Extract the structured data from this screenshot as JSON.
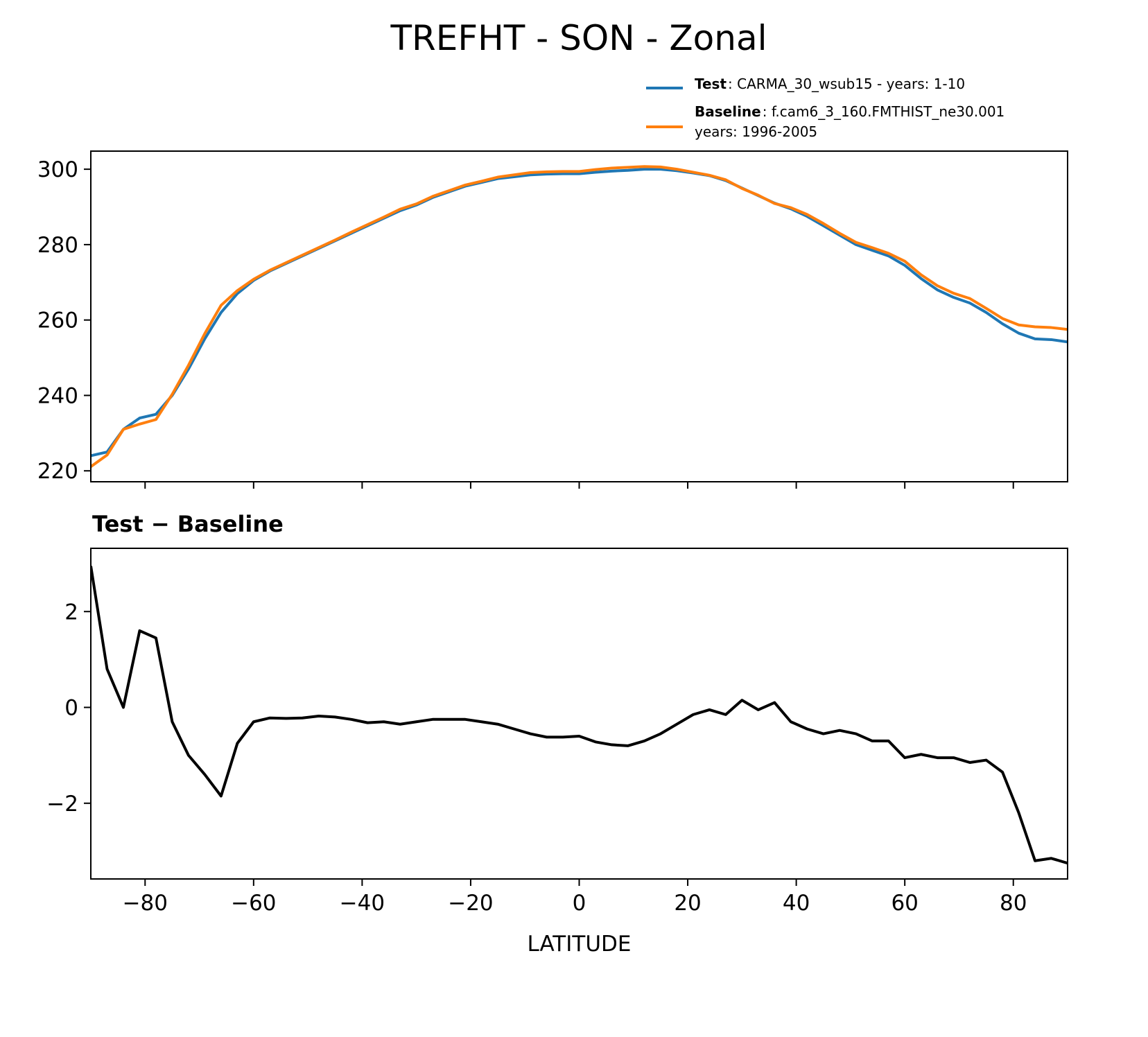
{
  "chart_data": [
    {
      "type": "line",
      "title": "TREFHT - SON - Zonal",
      "x": [
        -90,
        -87,
        -84,
        -81,
        -78,
        -75,
        -72,
        -69,
        -66,
        -63,
        -60,
        -57,
        -54,
        -51,
        -48,
        -45,
        -42,
        -39,
        -36,
        -33,
        -30,
        -27,
        -24,
        -21,
        -18,
        -15,
        -12,
        -9,
        -6,
        -3,
        0,
        3,
        6,
        9,
        12,
        15,
        18,
        21,
        24,
        27,
        30,
        33,
        36,
        39,
        42,
        45,
        48,
        51,
        54,
        57,
        60,
        63,
        66,
        69,
        72,
        75,
        78,
        81,
        84,
        87,
        90
      ],
      "series": [
        {
          "name": "Test",
          "description": [
            ": CARMA_30_wsub15 - years: 1-10"
          ],
          "color": "#1f77b4",
          "values": [
            224,
            225,
            231,
            234,
            235,
            240,
            247,
            255,
            262,
            267,
            270.5,
            273,
            275,
            277,
            279,
            281,
            283,
            285,
            287,
            289,
            290.5,
            292.5,
            294,
            295.5,
            296.5,
            297.5,
            298,
            298.5,
            298.7,
            298.8,
            298.8,
            299.2,
            299.5,
            299.7,
            300,
            300,
            299.6,
            299,
            298.3,
            297,
            295,
            293,
            291,
            289.5,
            287.5,
            285,
            282.5,
            280,
            278.5,
            277,
            274.5,
            271,
            268,
            266,
            264.5,
            262,
            259,
            256.5,
            255,
            254.8,
            254.2
          ]
        },
        {
          "name": "Baseline",
          "description": [
            ": f.cam6_3_160.FMTHIST_ne30.001",
            "years: 1996-2005"
          ],
          "color": "#ff7f0e",
          "values": [
            221.1,
            224.2,
            231,
            232.4,
            233.6,
            240.3,
            248,
            256.4,
            263.9,
            267.8,
            270.8,
            273.2,
            275.2,
            277.2,
            279.2,
            281.2,
            283.3,
            285.3,
            287.3,
            289.4,
            290.8,
            292.8,
            294.3,
            295.8,
            296.8,
            297.9,
            298.5,
            299.1,
            299.3,
            299.4,
            299.4,
            299.9,
            300.3,
            300.5,
            300.7,
            300.6,
            300,
            299.2,
            298.4,
            297.2,
            294.9,
            293.1,
            290.9,
            289.8,
            288,
            285.6,
            283,
            280.6,
            279.2,
            277.7,
            275.6,
            272,
            269.1,
            267.1,
            265.7,
            263.1,
            260.4,
            258.7,
            258.2,
            258,
            257.5
          ]
        }
      ],
      "xlim": [
        -90,
        90
      ],
      "xticks": [
        -80,
        -60,
        -40,
        -20,
        0,
        20,
        40,
        60,
        80
      ],
      "xtick_labels": false,
      "ylim": [
        217.1,
        304.8
      ],
      "yticks": [
        220,
        240,
        260,
        280,
        300
      ],
      "legend": "upper right"
    },
    {
      "type": "line",
      "title": "Test − Baseline",
      "xlabel": "LATITUDE",
      "x": [
        -90,
        -87,
        -84,
        -81,
        -78,
        -75,
        -72,
        -69,
        -66,
        -63,
        -60,
        -57,
        -54,
        -51,
        -48,
        -45,
        -42,
        -39,
        -36,
        -33,
        -30,
        -27,
        -24,
        -21,
        -18,
        -15,
        -12,
        -9,
        -6,
        -3,
        0,
        3,
        6,
        9,
        12,
        15,
        18,
        21,
        24,
        27,
        30,
        33,
        36,
        39,
        42,
        45,
        48,
        51,
        54,
        57,
        60,
        63,
        66,
        69,
        72,
        75,
        78,
        81,
        84,
        87,
        90
      ],
      "series": [
        {
          "color": "#000000",
          "values": [
            2.95,
            0.8,
            0.0,
            1.6,
            1.45,
            -0.3,
            -1.0,
            -1.4,
            -1.85,
            -0.75,
            -0.3,
            -0.22,
            -0.23,
            -0.22,
            -0.18,
            -0.2,
            -0.25,
            -0.32,
            -0.3,
            -0.35,
            -0.3,
            -0.25,
            -0.25,
            -0.25,
            -0.3,
            -0.35,
            -0.45,
            -0.55,
            -0.62,
            -0.62,
            -0.6,
            -0.72,
            -0.78,
            -0.8,
            -0.7,
            -0.55,
            -0.35,
            -0.15,
            -0.05,
            -0.15,
            0.15,
            -0.05,
            0.1,
            -0.3,
            -0.45,
            -0.55,
            -0.48,
            -0.55,
            -0.7,
            -0.7,
            -1.05,
            -0.98,
            -1.05,
            -1.05,
            -1.15,
            -1.1,
            -1.35,
            -2.2,
            -3.2,
            -3.15,
            -3.25
          ]
        }
      ],
      "xlim": [
        -90,
        90
      ],
      "xticks": [
        {
          "value": -80,
          "label": "−80"
        },
        {
          "value": -60,
          "label": "−60"
        },
        {
          "value": -40,
          "label": "−40"
        },
        {
          "value": -20,
          "label": "−20"
        },
        0,
        20,
        40,
        60,
        80
      ],
      "xtick_labels": true,
      "ylim": [
        -3.58,
        3.32
      ],
      "yticks": [
        {
          "value": -2,
          "label": "−2"
        },
        0,
        2
      ]
    }
  ]
}
